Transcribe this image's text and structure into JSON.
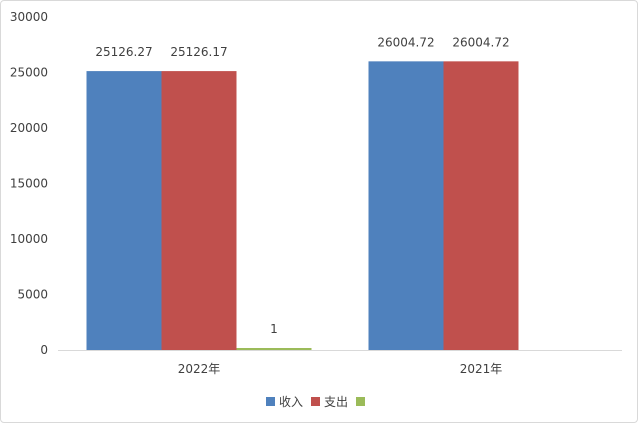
{
  "chart_data": {
    "type": "bar",
    "categories": [
      "2022年",
      "2021年"
    ],
    "series": [
      {
        "name": "收入",
        "color": "#4F81BD",
        "values": [
          25126.27,
          26004.72
        ],
        "labels": [
          "25126.27",
          "26004.72"
        ]
      },
      {
        "name": "支出",
        "color": "#C0504D",
        "values": [
          25126.17,
          26004.72
        ],
        "labels": [
          "25126.17",
          "26004.72"
        ]
      },
      {
        "name": "",
        "color": "#9BBB59",
        "values": [
          1,
          null
        ],
        "labels": [
          "1",
          ""
        ]
      }
    ],
    "yticks": [
      "0",
      "5000",
      "10000",
      "15000",
      "20000",
      "25000",
      "30000"
    ],
    "ylim": [
      0,
      30000
    ],
    "grid": false,
    "legend_position": "bottom"
  }
}
